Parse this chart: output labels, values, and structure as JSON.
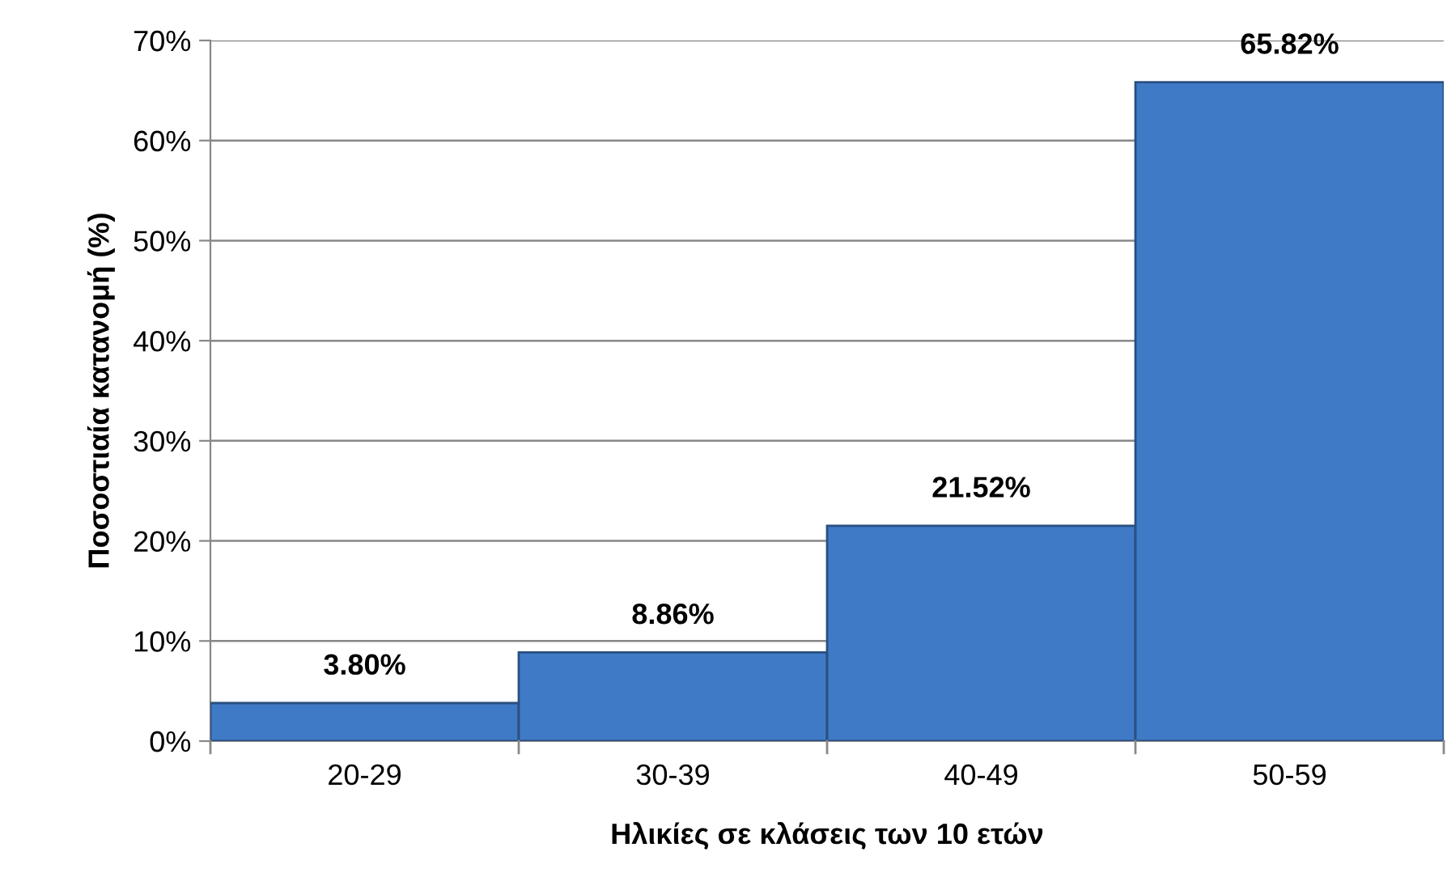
{
  "chart_data": {
    "type": "bar",
    "xlabel": "Ηλικίες σε κλάσεις των 10 ετών",
    "ylabel": "Ποσοστιαία κατανομή (%)",
    "categories": [
      "20-29",
      "30-39",
      "40-49",
      "50-59"
    ],
    "values": [
      3.8,
      8.86,
      21.52,
      65.82
    ],
    "value_labels": [
      "3.80%",
      "8.86%",
      "21.52%",
      "65.82%"
    ],
    "color": "#3f7ac6",
    "ylim": [
      0,
      70
    ],
    "yticks": [
      {
        "value": 0,
        "label": "0%"
      },
      {
        "value": 10,
        "label": "10%"
      },
      {
        "value": 20,
        "label": "20%"
      },
      {
        "value": 30,
        "label": "30%"
      },
      {
        "value": 40,
        "label": "40%"
      },
      {
        "value": 50,
        "label": "50%"
      },
      {
        "value": 60,
        "label": "60%"
      },
      {
        "value": 70,
        "label": "70%"
      }
    ],
    "grid": "y"
  }
}
